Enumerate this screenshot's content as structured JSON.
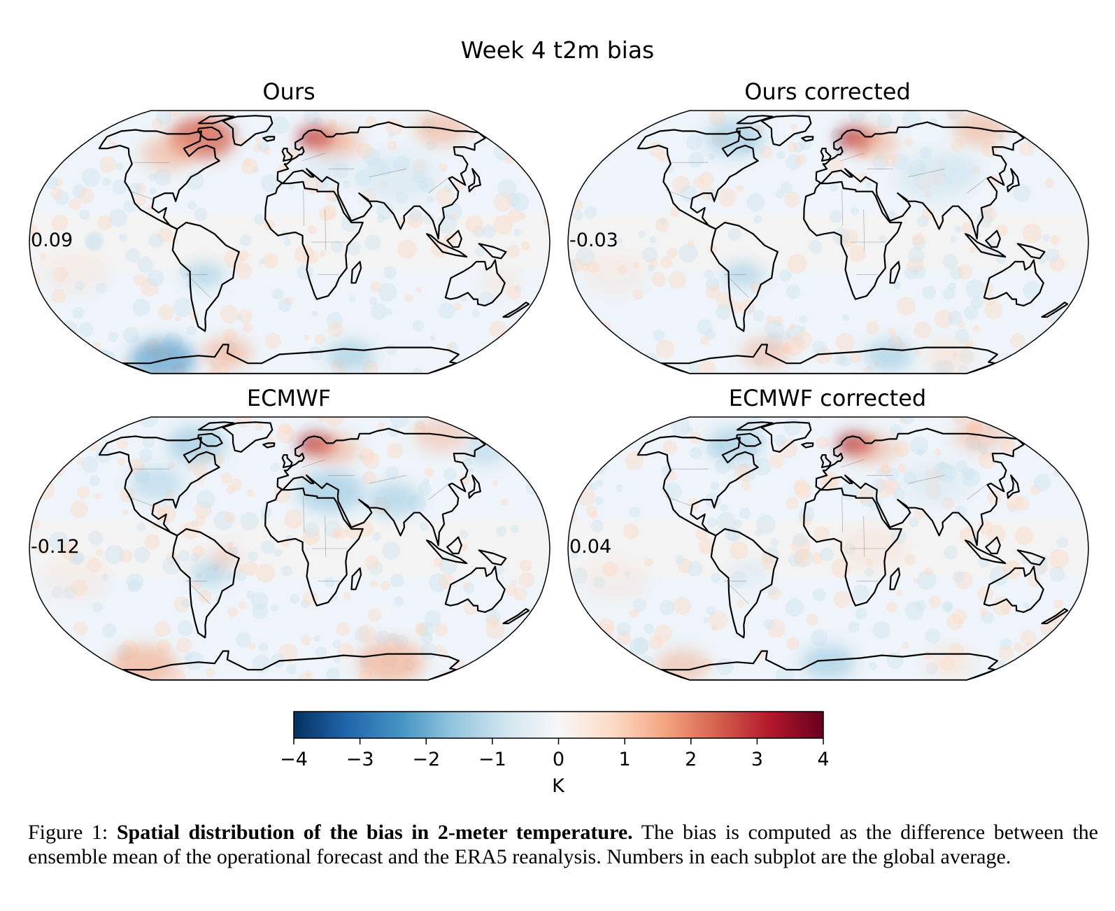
{
  "figure": {
    "title": "Week 4 t2m bias"
  },
  "panels": [
    {
      "id": "ours",
      "title": "Ours",
      "global_mean": "0.09"
    },
    {
      "id": "ours-corrected",
      "title": "Ours corrected",
      "global_mean": "-0.03"
    },
    {
      "id": "ecmwf",
      "title": "ECMWF",
      "global_mean": "-0.12"
    },
    {
      "id": "ecmwf-corrected",
      "title": "ECMWF corrected",
      "global_mean": "0.04"
    }
  ],
  "colorbar": {
    "label": "K",
    "min": -4,
    "max": 4,
    "ticks": [
      "−4",
      "−3",
      "−2",
      "−1",
      "0",
      "1",
      "2",
      "3",
      "4"
    ],
    "colormap": [
      "#053061",
      "#2166ac",
      "#4393c3",
      "#92c5de",
      "#d1e5f0",
      "#f7f7f7",
      "#fddbc7",
      "#f4a582",
      "#d6604d",
      "#b2182b",
      "#67001f"
    ]
  },
  "caption": {
    "prefix": "Figure 1: ",
    "bold": "Spatial distribution of the bias in 2-meter temperature.",
    "text": " The bias is computed as the difference between the ensemble mean of the operational forecast and the ERA5 reanalysis. Numbers in each subplot are the global average."
  }
}
